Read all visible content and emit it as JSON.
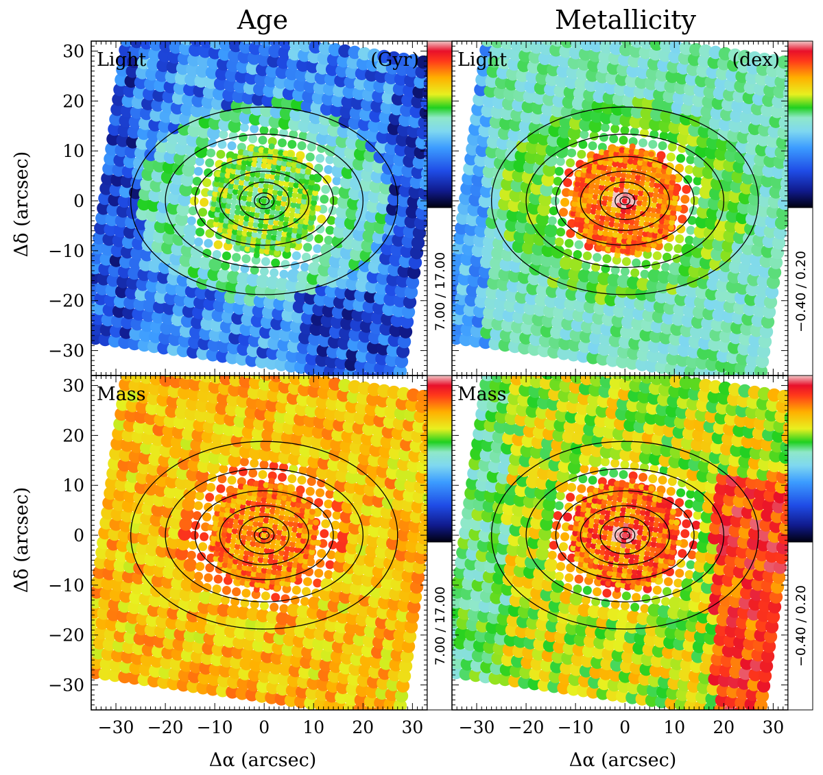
{
  "figure": {
    "column_titles": [
      "Age",
      "Metallicity"
    ],
    "xlabel": "Δα  (arcsec)",
    "ylabel": "Δδ  (arcsec)"
  },
  "chart_data": [
    {
      "type": "heatmap",
      "quantity": "Age",
      "weighting": "Light",
      "panel_label": "Light",
      "unit_label": "(Gyr)",
      "colorbar_range_label": "7.00  /  17.00",
      "vmin": 7.0,
      "vmax": 17.0,
      "xlim": [
        -35,
        33
      ],
      "ylim": [
        -35,
        32
      ],
      "xticks": [
        -30,
        -20,
        -10,
        0,
        10,
        20,
        30
      ],
      "yticks": [
        -30,
        -20,
        -10,
        0,
        10,
        20,
        30
      ],
      "dominant_levels": {
        "outer": "blue",
        "middle": "light blue",
        "inner_rings": "green-yellow"
      },
      "grid": false
    },
    {
      "type": "heatmap",
      "quantity": "Metallicity",
      "weighting": "Light",
      "panel_label": "Light",
      "unit_label": "(dex)",
      "colorbar_range_label": "−0.40  /  0.20",
      "vmin": -0.4,
      "vmax": 0.2,
      "xlim": [
        -35,
        33
      ],
      "ylim": [
        -35,
        32
      ],
      "xticks": [
        -30,
        -20,
        -10,
        0,
        10,
        20,
        30
      ],
      "yticks": [
        -30,
        -20,
        -10,
        0,
        10,
        20,
        30
      ],
      "dominant_levels": {
        "outer": "light blue",
        "middle": "green",
        "center": "red"
      },
      "grid": false
    },
    {
      "type": "heatmap",
      "quantity": "Age",
      "weighting": "Mass",
      "panel_label": "Mass",
      "unit_label": "",
      "colorbar_range_label": "7.00  /  17.00",
      "vmin": 7.0,
      "vmax": 17.0,
      "xlim": [
        -35,
        33
      ],
      "ylim": [
        -35,
        32
      ],
      "xticks": [
        -30,
        -20,
        -10,
        0,
        10,
        20,
        30
      ],
      "yticks": [
        -30,
        -20,
        -10,
        0,
        10,
        20,
        30
      ],
      "dominant_levels": {
        "overall": "yellow-orange",
        "inner_rings": "orange-red"
      },
      "grid": false
    },
    {
      "type": "heatmap",
      "quantity": "Metallicity",
      "weighting": "Mass",
      "panel_label": "Mass",
      "unit_label": "",
      "colorbar_range_label": "−0.40  /  0.20",
      "vmin": -0.4,
      "vmax": 0.2,
      "xlim": [
        -35,
        33
      ],
      "ylim": [
        -35,
        32
      ],
      "xticks": [
        -30,
        -20,
        -10,
        0,
        10,
        20,
        30
      ],
      "yticks": [
        -30,
        -20,
        -10,
        0,
        10,
        20,
        30
      ],
      "dominant_levels": {
        "overall": "yellow-green",
        "outer_right": "red",
        "center": "red"
      },
      "grid": false
    }
  ],
  "colors": {
    "colormap": [
      "#000010",
      "#101a8c",
      "#1f4ce6",
      "#3c9cff",
      "#7fd8f0",
      "#8fe8c8",
      "#20d020",
      "#e8f020",
      "#ffb000",
      "#ff3a1a",
      "#e8102a",
      "#f0c8c8"
    ],
    "contour": "#000000",
    "background": "#ffffff"
  }
}
